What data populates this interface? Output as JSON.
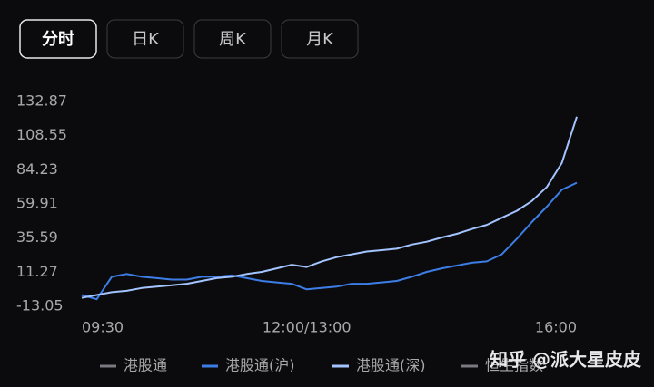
{
  "tabs": [
    {
      "label": "分时",
      "selected": true
    },
    {
      "label": "日K",
      "selected": false
    },
    {
      "label": "周K",
      "selected": false
    },
    {
      "label": "月K",
      "selected": false
    }
  ],
  "chart_data": {
    "type": "line",
    "categories": [
      "09:30",
      null,
      null,
      null,
      null,
      null,
      null,
      null,
      null,
      null,
      null,
      null,
      null,
      null,
      null,
      "12:00/13:00",
      null,
      null,
      null,
      null,
      null,
      null,
      null,
      null,
      null,
      null,
      null,
      null,
      null,
      null,
      null,
      null,
      null,
      "16:00"
    ],
    "series": [
      {
        "name": "港股通",
        "color": "#7a7a80",
        "visible": false
      },
      {
        "name": "港股通(沪)",
        "color": "#3d7ee6",
        "visible": true,
        "values": [
          -5,
          -8,
          8,
          10,
          8,
          7,
          6,
          6,
          8,
          8,
          9,
          7,
          5,
          4,
          3,
          -1,
          0,
          1,
          3,
          3,
          4,
          5,
          8,
          11.5,
          14,
          16,
          18,
          19,
          24,
          35,
          47,
          58,
          70,
          75
        ]
      },
      {
        "name": "港股通(深)",
        "color": "#a3c4ff",
        "visible": true,
        "values": [
          -7,
          -5,
          -3,
          -2,
          0,
          1,
          2,
          3,
          5,
          7,
          8,
          10,
          11.5,
          14,
          16.6,
          15,
          19,
          22,
          24,
          26,
          27,
          28,
          31,
          33,
          36,
          38.6,
          42,
          45,
          50,
          55,
          62,
          72,
          89,
          122
        ]
      },
      {
        "name": "恒生指数",
        "color": "#7a7a80",
        "visible": false
      }
    ],
    "ylim": [
      -13.05,
      132.87
    ],
    "yticks": [
      -13.05,
      11.27,
      35.59,
      59.91,
      84.23,
      108.55,
      132.87
    ],
    "grid": false
  },
  "watermark": "知乎 @派大星皮皮"
}
